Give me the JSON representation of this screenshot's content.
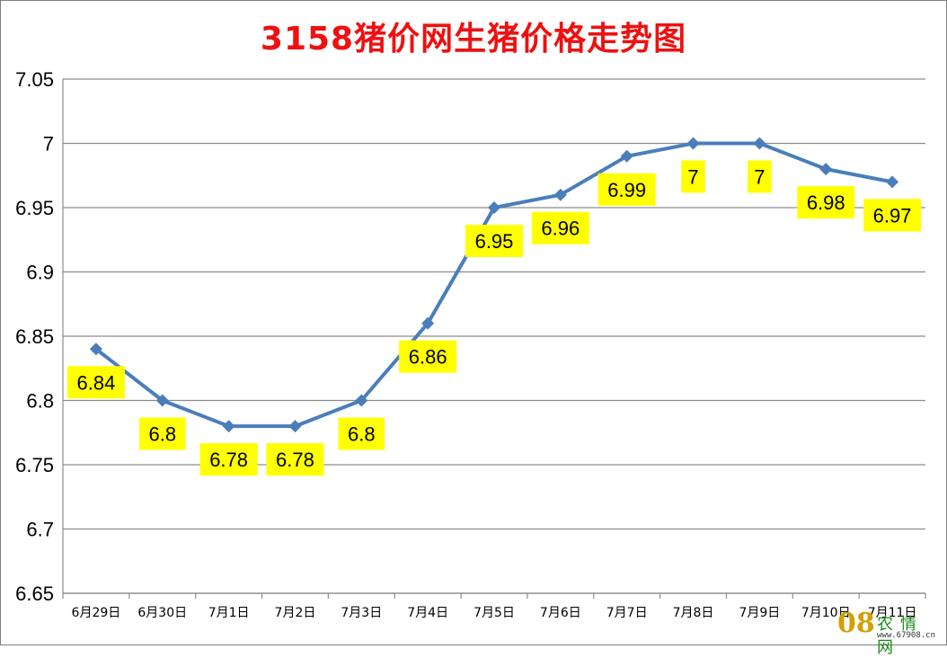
{
  "chart_data": {
    "type": "line",
    "title": "3158猪价网生猪价格走势图",
    "categories": [
      "6月29日",
      "6月30日",
      "7月1日",
      "7月2日",
      "7月3日",
      "7月4日",
      "7月5日",
      "7月6日",
      "7月7日",
      "7月8日",
      "7月9日",
      "7月10日",
      "7月11日"
    ],
    "series": [
      {
        "values": [
          6.84,
          6.8,
          6.78,
          6.78,
          6.8,
          6.86,
          6.95,
          6.96,
          6.99,
          7,
          7,
          6.98,
          6.97
        ]
      }
    ],
    "data_labels": [
      "6.84",
      "6.8",
      "6.78",
      "6.78",
      "6.8",
      "6.86",
      "6.95",
      "6.96",
      "6.99",
      "7",
      "7",
      "6.98",
      "6.97"
    ],
    "ylim": [
      6.65,
      7.05
    ],
    "yticks": [
      "6.65",
      "6.7",
      "6.75",
      "6.8",
      "6.85",
      "6.9",
      "6.95",
      "7",
      "7.05"
    ],
    "grid": true,
    "colors": {
      "line": "#4a7ebb",
      "label_bg": "#ffff00",
      "title": "#ee1111",
      "grid": "#8c8c8c"
    }
  },
  "watermark": {
    "num": "08",
    "text": "农情网",
    "url": "www.67908.cn"
  }
}
